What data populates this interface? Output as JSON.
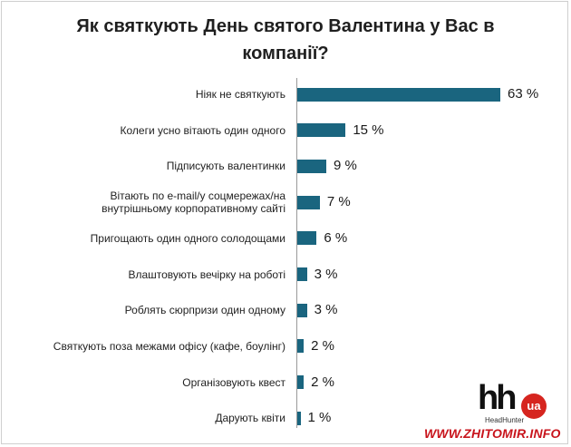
{
  "chart_data": {
    "type": "bar",
    "orientation": "horizontal",
    "title": "Як святкують День святого Валентина у Вас в компанії?",
    "categories": [
      "Ніяк не святкують",
      "Колеги усно вітають один одного",
      "Підписують валентинки",
      "Вітають по e-mail/у соцмережах/на внутрішньому корпоративному сайті",
      "Пригощають один одного солодощами",
      "Влаштовують вечірку на роботі",
      "Роблять сюрпризи один одному",
      "Святкують поза межами офісу (кафе, боулінг)",
      "Організовують квест",
      "Дарують квіти"
    ],
    "category_lines": [
      [
        "Ніяк не святкують"
      ],
      [
        "Колеги усно вітають один одного"
      ],
      [
        "Підписують валентинки"
      ],
      [
        "Вітають по e-mail/у соцмережах/на",
        "внутрішньому корпоративному сайті"
      ],
      [
        "Пригощають один одного солодощами"
      ],
      [
        "Влаштовують вечірку на роботі"
      ],
      [
        "Роблять сюрпризи один одному"
      ],
      [
        "Святкують поза межами офісу (кафе, боулінг)"
      ],
      [
        "Організовують квест"
      ],
      [
        "Дарують квіти"
      ]
    ],
    "values": [
      63,
      15,
      9,
      7,
      6,
      3,
      3,
      2,
      2,
      1
    ],
    "value_labels": [
      "63 %",
      "15 %",
      "9 %",
      "7 %",
      "6 %",
      "3 %",
      "3 %",
      "2 %",
      "2 %",
      "1 %"
    ],
    "unit": "%",
    "xlim": [
      0,
      63
    ],
    "grid": false,
    "bar_color": "#1a657f"
  },
  "logo": {
    "main": "hh",
    "badge": "ua",
    "sub": "HeadHunter"
  },
  "watermark": "WWW.ZHITOMIR.INFO"
}
